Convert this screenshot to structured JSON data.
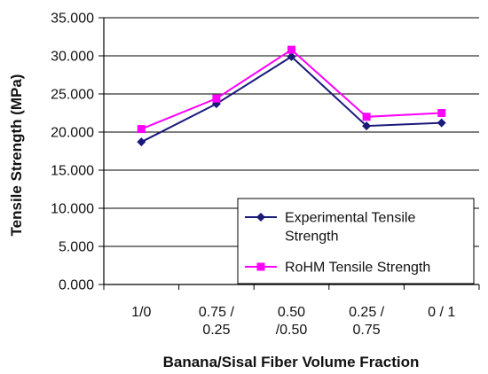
{
  "chart_data": {
    "type": "line",
    "xlabel": "Banana/Sisal Fiber Volume Fraction",
    "ylabel": "Tensile Strength (MPa)",
    "ylim": [
      0,
      35
    ],
    "y_ticks": [
      "0.000",
      "5.000",
      "10.000",
      "15.000",
      "20.000",
      "25.000",
      "30.000",
      "35.000"
    ],
    "categories": [
      [
        "1/0"
      ],
      [
        "0.75 /",
        "0.25"
      ],
      [
        "0.50",
        "/0.50"
      ],
      [
        "0.25 /",
        "0.75"
      ],
      [
        "0 / 1"
      ]
    ],
    "series": [
      {
        "name": [
          "Experimental Tensile",
          "Strength"
        ],
        "color": "#1a1a7a",
        "marker": "diamond",
        "values": [
          18.7,
          23.7,
          29.9,
          20.8,
          21.2
        ]
      },
      {
        "name": [
          "RoHM Tensile Strength"
        ],
        "color": "#ff00ff",
        "marker": "square",
        "values": [
          20.4,
          24.4,
          30.8,
          22.0,
          22.5
        ]
      }
    ],
    "grid": true,
    "legend_position": "bottom-right"
  }
}
